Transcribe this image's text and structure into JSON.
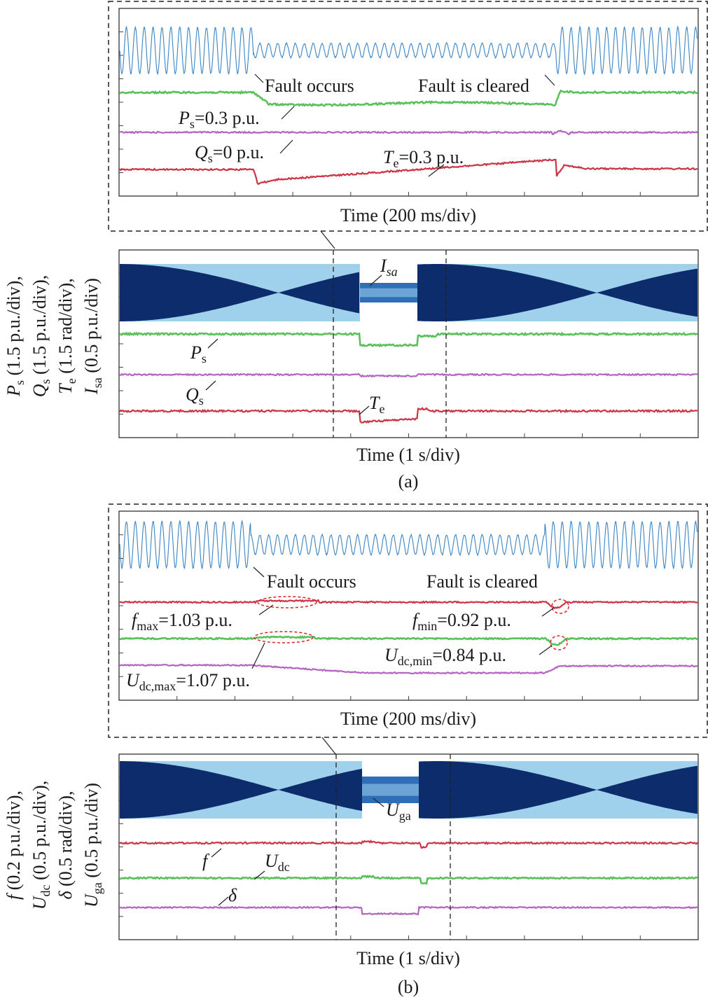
{
  "colors": {
    "frame": "#222222",
    "grid": "#444444",
    "current_dark": "#0d2c6b",
    "current_light": "#9fd0ec",
    "current_mid": "#2f6fb8",
    "current_zoom": "#3b84c4",
    "red": "#cc3344",
    "green": "#59c05a",
    "purple": "#b463c2",
    "ellipse": "#dd2222"
  },
  "chart_data": [
    {
      "panel": "(a) zoom",
      "type": "line",
      "xlabel": "Time (200 ms/div)",
      "x_divisions": 10,
      "y_divisions": 8,
      "annotations": {
        "fault": "Fault occurs",
        "cleared": "Fault is cleared",
        "ps_name": "P",
        "ps_sub": "s",
        "ps_val": "=0.3 p.u.",
        "qs_name": "Q",
        "qs_sub": "s",
        "qs_val": "=0 p.u.",
        "te_name": "T",
        "te_sub": "e",
        "te_val": "=0.3 p.u."
      },
      "fault_interval_div": [
        2.3,
        7.4
      ],
      "series": [
        {
          "name": "Isa",
          "kind": "ac",
          "amplitude_normal_div": 1.05,
          "amplitude_fault_div": 0.3,
          "cycles_per_div": 6.5
        },
        {
          "name": "Ps",
          "kind": "level",
          "normal_level": 0.3,
          "fault_step": -0.22,
          "recovery_overshoot": 0.25
        },
        {
          "name": "Qs",
          "kind": "level",
          "normal_level": 0.0,
          "fault_step": 0.0
        },
        {
          "name": "Te",
          "kind": "level",
          "normal_level": 0.3,
          "fault_step": -0.32,
          "recovery_overshoot": 0.2
        }
      ]
    },
    {
      "panel": "(a) full",
      "type": "line",
      "xlabel": "Time (1 s/div)",
      "x_divisions": 10,
      "y_divisions": 8,
      "caption": "(a)",
      "ylabel_parts": [
        {
          "name": "P",
          "sub": "s",
          "rest": " (1.5 p.u./div),"
        },
        {
          "name": "Q",
          "sub": "s",
          "rest": " (1.5 p.u./div),"
        },
        {
          "name": "T",
          "sub": "e",
          "rest": " (1.5 rad/div),"
        },
        {
          "name": "I",
          "sub": "sa",
          "rest": " (0.5 p.u./div)"
        }
      ],
      "annotations": {
        "i_name": "I",
        "i_sub": "sa",
        "ps_name": "P",
        "ps_sub": "s",
        "qs_name": "Q",
        "qs_sub": "s",
        "te_name": "T",
        "te_sub": "e"
      },
      "zoom_window_div": [
        3.7,
        5.7
      ],
      "fault_interval_div": [
        4.15,
        5.2
      ],
      "beat_period_div": 5.5,
      "series": [
        {
          "name": "Isa",
          "kind": "ac-beat"
        },
        {
          "name": "Ps",
          "kind": "level",
          "fault_step": -0.22
        },
        {
          "name": "Qs",
          "kind": "level",
          "fault_step": 0.0
        },
        {
          "name": "Te",
          "kind": "level",
          "fault_step": -0.2
        }
      ]
    },
    {
      "panel": "(b) zoom",
      "type": "line",
      "xlabel": "Time (200 ms/div)",
      "x_divisions": 10,
      "y_divisions": 8,
      "annotations": {
        "fault": "Fault occurs",
        "cleared": "Fault is cleared",
        "fmax_name": "f",
        "fmax_sub": "max",
        "fmax_val": "=1.03 p.u.",
        "fmin_name": "f",
        "fmin_sub": "min",
        "fmin_val": "=0.92 p.u.",
        "udcmin_name": "U",
        "udcmin_sub": "dc,min",
        "udcmin_val": "=0.84 p.u.",
        "udcmax_name": "U",
        "udcmax_sub": "dc,max",
        "udcmax_val": "=1.07 p.u."
      },
      "fault_interval_div": [
        2.3,
        7.4
      ],
      "series": [
        {
          "name": "Uga",
          "kind": "ac",
          "amplitude_normal_div": 1.05,
          "amplitude_fault_div": 0.45,
          "cycles_per_div": 6.5
        },
        {
          "name": "f",
          "kind": "level",
          "max": 1.03,
          "min": 0.92
        },
        {
          "name": "Udc",
          "kind": "level",
          "max": 1.07,
          "min": 0.84
        },
        {
          "name": "delta",
          "kind": "level",
          "fault_step": -0.15
        }
      ]
    },
    {
      "panel": "(b) full",
      "type": "line",
      "xlabel": "Time (1 s/div)",
      "x_divisions": 10,
      "y_divisions": 8,
      "caption": "(b)",
      "ylabel_parts": [
        {
          "name": "f",
          "sub": "",
          "rest": " (0.2 p.u./div),"
        },
        {
          "name": "U",
          "sub": "dc",
          "rest": " (0.5 p.u./div),"
        },
        {
          "name": "δ",
          "sub": "",
          "rest": " (0.5 rad/div),"
        },
        {
          "name": "U",
          "sub": "ga",
          "rest": " (0.5 p.u./div)"
        }
      ],
      "annotations": {
        "u_name": "U",
        "u_sub": "ga",
        "f_name": "f",
        "udc_name": "U",
        "udc_sub": "dc",
        "delta_name": "δ"
      },
      "zoom_window_div": [
        3.75,
        5.75
      ],
      "fault_interval_div": [
        4.2,
        5.2
      ],
      "beat_period_div": 5.5,
      "series": [
        {
          "name": "Uga",
          "kind": "ac-beat"
        },
        {
          "name": "f",
          "kind": "level",
          "fault_step": 0.0
        },
        {
          "name": "Udc",
          "kind": "level",
          "fault_step": 0.0
        },
        {
          "name": "delta",
          "kind": "level",
          "fault_step": -0.15
        }
      ]
    }
  ]
}
